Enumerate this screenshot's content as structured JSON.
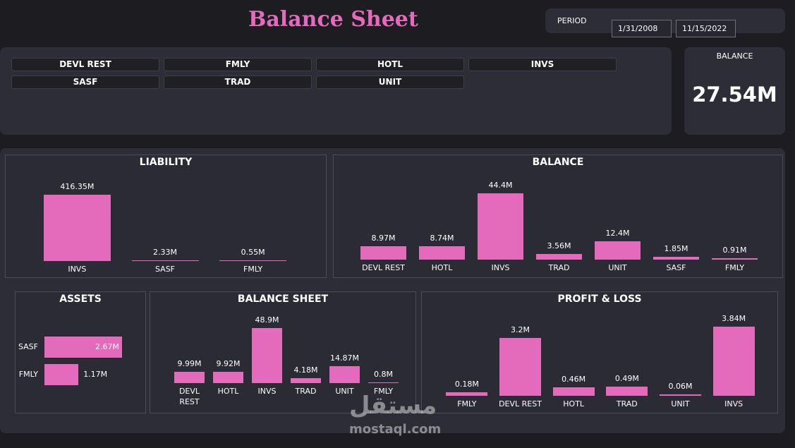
{
  "header": {
    "title": "Balance Sheet",
    "period_label": "PERIOD",
    "start_date": "1/31/2008",
    "end_date": "11/15/2022"
  },
  "slicer": {
    "options": [
      "DEVL REST",
      "FMLY",
      "HOTL",
      "INVS",
      "SASF",
      "TRAD",
      "UNIT"
    ]
  },
  "card": {
    "label": "BALANCE",
    "value": "27.54M"
  },
  "chart_data": [
    {
      "type": "bar",
      "title": "LIABILITY",
      "categories": [
        "INVS",
        "SASF",
        "FMLY"
      ],
      "values": [
        416350000,
        2330000,
        550000
      ],
      "value_labels": [
        "416.35M",
        "2.33M",
        "0.55M"
      ],
      "color": "#e46bbb"
    },
    {
      "type": "bar",
      "title": "BALANCE",
      "categories": [
        "DEVL REST",
        "HOTL",
        "INVS",
        "TRAD",
        "UNIT",
        "SASF",
        "FMLY"
      ],
      "values": [
        8970000,
        8740000,
        44400000,
        3560000,
        12400000,
        1850000,
        910000
      ],
      "value_labels": [
        "8.97M",
        "8.74M",
        "44.4M",
        "3.56M",
        "12.4M",
        "1.85M",
        "0.91M"
      ],
      "color": "#e46bbb"
    },
    {
      "type": "hbar",
      "title": "ASSETS",
      "categories": [
        "SASF",
        "FMLY"
      ],
      "values": [
        2670000,
        1170000
      ],
      "value_labels": [
        "2.67M",
        "1.17M"
      ],
      "color": "#e46bbb"
    },
    {
      "type": "bar",
      "title": "BALANCE SHEET",
      "categories": [
        "DEVL REST",
        "HOTL",
        "INVS",
        "TRAD",
        "UNIT",
        "FMLY"
      ],
      "values": [
        9990000,
        9920000,
        48900000,
        4180000,
        14870000,
        800000
      ],
      "value_labels": [
        "9.99M",
        "9.92M",
        "48.9M",
        "4.18M",
        "14.87M",
        "0.8M"
      ],
      "color": "#e46bbb"
    },
    {
      "type": "bar",
      "title": "PROFIT & LOSS",
      "categories": [
        "FMLY",
        "DEVL REST",
        "HOTL",
        "TRAD",
        "UNIT",
        "INVS"
      ],
      "values": [
        180000,
        3200000,
        460000,
        490000,
        60000,
        3840000
      ],
      "value_labels": [
        "0.18M",
        "3.2M",
        "0.46M",
        "0.49M",
        "0.06M",
        "3.84M"
      ],
      "color": "#e46bbb"
    }
  ],
  "watermark": {
    "arabic": "مستقل",
    "site": "mostaql.com"
  }
}
